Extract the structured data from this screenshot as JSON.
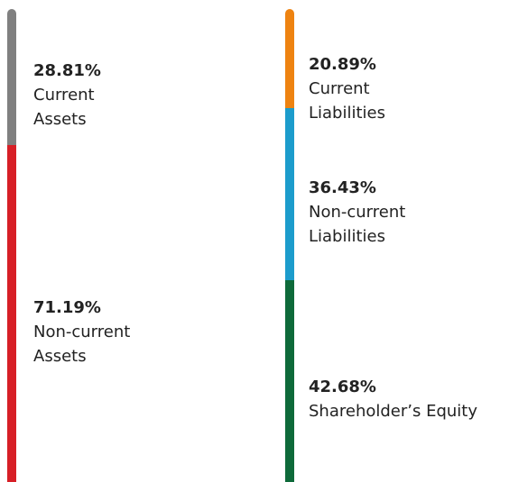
{
  "chart_data": [
    {
      "type": "stacked_bar",
      "ylim": [
        0,
        100
      ],
      "series": [
        {
          "name": "Current\nAssets",
          "color": "#808080",
          "values": [
            28.81
          ],
          "value_labels": [
            "28.81%"
          ]
        },
        {
          "name": "Non-current\nAssets",
          "color": "#d71f26",
          "values": [
            71.19
          ],
          "value_labels": [
            "71.19%"
          ]
        }
      ]
    },
    {
      "type": "stacked_bar",
      "ylim": [
        0,
        100
      ],
      "series": [
        {
          "name": "Current\nLiabilities",
          "color": "#ee8311",
          "values": [
            20.89
          ],
          "value_labels": [
            "20.89%"
          ]
        },
        {
          "name": "Non-current\nLiabilities",
          "color": "#1c9ccc",
          "values": [
            36.43
          ],
          "value_labels": [
            "36.43%"
          ]
        },
        {
          "name": "Shareholder’s Equity",
          "color": "#0e6a3a",
          "values": [
            42.68
          ],
          "value_labels": [
            "42.68%"
          ]
        }
      ]
    }
  ]
}
